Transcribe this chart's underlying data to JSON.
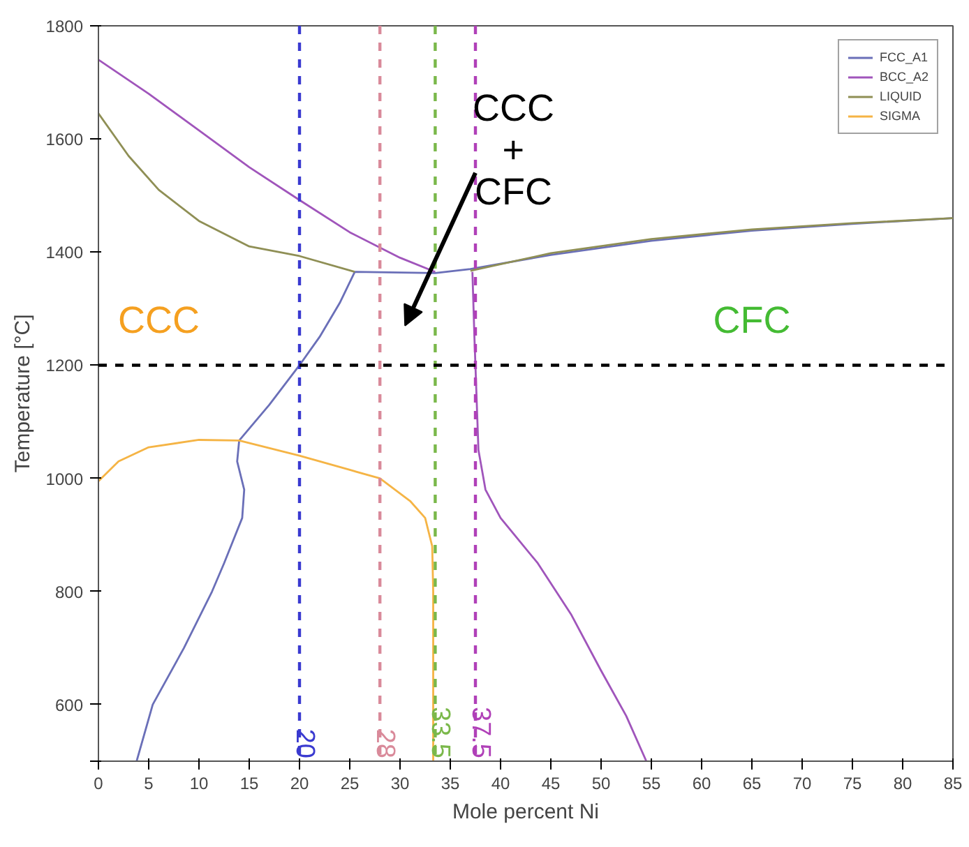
{
  "chart_data": {
    "type": "line",
    "xlabel": "Mole percent Ni",
    "ylabel": "Temperature [°C]",
    "xlim": [
      0,
      85
    ],
    "ylim": [
      500,
      1800
    ],
    "xticks": [
      0,
      5,
      10,
      15,
      20,
      25,
      30,
      35,
      40,
      45,
      50,
      55,
      60,
      65,
      70,
      75,
      80,
      85
    ],
    "yticks": [
      {
        "value": 500,
        "label": null
      },
      600,
      800,
      1000,
      1200,
      1400,
      1600,
      1800
    ],
    "series": [
      {
        "name": "FCC_A1",
        "color": "#6a6fb8",
        "x": [
          3.8,
          5.4,
          8.5,
          11.3,
          12.5,
          14.3,
          14.5,
          13.8,
          14,
          17,
          20,
          22,
          24,
          25.5,
          null,
          25.5,
          33.5,
          37,
          null,
          37,
          45,
          55,
          65,
          75,
          85
        ],
        "values": [
          500,
          600,
          700,
          800,
          850,
          930,
          980,
          1030,
          1067,
          1130,
          1200,
          1250,
          1310,
          1365,
          null,
          1365,
          1363,
          1370,
          null,
          1370,
          1395,
          1420,
          1438,
          1450,
          1460
        ]
      },
      {
        "name": "BCC_A2",
        "color": "#a055bb",
        "x": [
          0,
          5,
          10,
          15,
          20,
          25,
          30,
          33.5,
          null,
          37.2,
          37.4,
          37.6,
          37.8,
          38.5,
          40,
          43.7,
          47,
          50,
          52.5,
          54.5
        ],
        "values": [
          1740,
          1680,
          1615,
          1550,
          1492,
          1435,
          1390,
          1365,
          null,
          1365,
          1250,
          1150,
          1050,
          980,
          930,
          850,
          760,
          660,
          580,
          500
        ]
      },
      {
        "name": "LIQUID",
        "color": "#8f8f55",
        "x": [
          0,
          3,
          6,
          10,
          15,
          20,
          25.5,
          null,
          37,
          45,
          55,
          65,
          75,
          85
        ],
        "values": [
          1645,
          1570,
          1510,
          1455,
          1410,
          1393,
          1365,
          null,
          1367,
          1398,
          1423,
          1440,
          1451,
          1460
        ]
      },
      {
        "name": "SIGMA",
        "color": "#f5b445",
        "x": [
          0,
          2,
          5,
          10,
          14,
          20,
          25,
          28,
          31,
          32.5,
          33.2,
          33.3,
          33.3,
          33.3,
          33.3
        ],
        "values": [
          995,
          1030,
          1055,
          1068,
          1067,
          1040,
          1015,
          1000,
          960,
          930,
          880,
          800,
          700,
          600,
          500
        ]
      }
    ],
    "ref_lines": [
      {
        "axis": "x",
        "value": 20,
        "label": "20",
        "color": "#3a3ad0",
        "line_style": "dashed"
      },
      {
        "axis": "x",
        "value": 28,
        "label": "28",
        "color": "#d98a9a",
        "line_style": "dashed"
      },
      {
        "axis": "x",
        "value": 33.5,
        "label": "33.5",
        "color": "#7ab84a",
        "line_style": "dashed"
      },
      {
        "axis": "x",
        "value": 37.5,
        "label": "37.5",
        "color": "#b040b8",
        "line_style": "dashed"
      },
      {
        "axis": "y",
        "value": 1200,
        "color": "#000000",
        "line_style": "dashed"
      }
    ],
    "annotations": [
      "CCC",
      "CFC",
      "CCC\n+\nCFC"
    ],
    "legend": "top right",
    "grid": false,
    "marker": "none",
    "line_style": "solid"
  }
}
